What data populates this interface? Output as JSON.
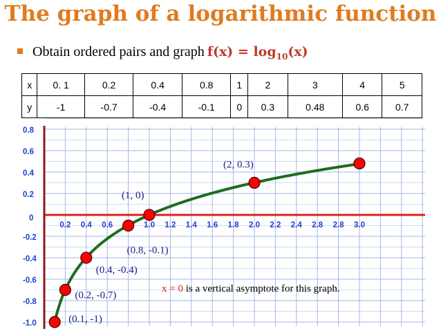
{
  "title": "The graph of a logarithmic function",
  "bullet": {
    "text": "Obtain ordered pairs and graph",
    "function_main": "f(x) = log",
    "function_sub": "10",
    "function_end": "(x)"
  },
  "table": {
    "x_header": "x",
    "y_header": "y",
    "x": [
      "0. 1",
      "0.2",
      "0.4",
      "0.8",
      "1",
      "2",
      "3",
      "4",
      "5"
    ],
    "y": [
      "-1",
      "-0.7",
      "-0.4",
      "-0.1",
      "0",
      "0.3",
      "0.48",
      "0.6",
      "0.7"
    ]
  },
  "note": {
    "var": "x = 0",
    "text": " is a vertical asymptote for this graph."
  },
  "colors": {
    "title": "#e07b1f",
    "curve": "#1e6b1e",
    "x_axis": "#e02020",
    "y_axis": "#8b1a1a",
    "grid": "#9fb7e8",
    "points": "#ff0000",
    "ticks": "#2040d0"
  },
  "chart_data": {
    "type": "line",
    "x_tick_labels": [
      "0.2",
      "0.4",
      "0.6",
      "",
      "1.0",
      "1.2",
      "1.4",
      "1.6",
      "1.8",
      "2.0",
      "2.2",
      "2.4",
      "2.8",
      "2.8",
      "3.0"
    ],
    "y_tick_labels": [
      {
        "value": 0.8,
        "label": "0.8"
      },
      {
        "value": 0.6,
        "label": "0.6"
      },
      {
        "value": 0.4,
        "label": "0.4"
      },
      {
        "value": 0.2,
        "label": "0.2"
      },
      {
        "value": 0,
        "label": "0"
      },
      {
        "value": -0.2,
        "label": "-0.2"
      },
      {
        "value": -0.4,
        "label": "-0.4"
      },
      {
        "value": -0.6,
        "label": "-0.6"
      },
      {
        "value": -0.8,
        "label": "-0.8"
      },
      {
        "value": -1.0,
        "label": "-1.0"
      }
    ],
    "xlim": [
      0,
      3.0
    ],
    "ylim": [
      -1.0,
      0.8
    ],
    "grid": true,
    "points": [
      {
        "x": 0.1,
        "y": -1,
        "label": "(0.1, -1)"
      },
      {
        "x": 0.2,
        "y": -0.7,
        "label": "(0.2, -0.7)"
      },
      {
        "x": 0.4,
        "y": -0.4,
        "label": "(0.4, -0.4)"
      },
      {
        "x": 0.8,
        "y": -0.1,
        "label": "(0.8, -0.1)"
      },
      {
        "x": 1,
        "y": 0,
        "label": "(1, 0)"
      },
      {
        "x": 2,
        "y": 0.3,
        "label": "(2, 0.3)"
      },
      {
        "x": 3,
        "y": 0.48,
        "label": ""
      }
    ]
  }
}
